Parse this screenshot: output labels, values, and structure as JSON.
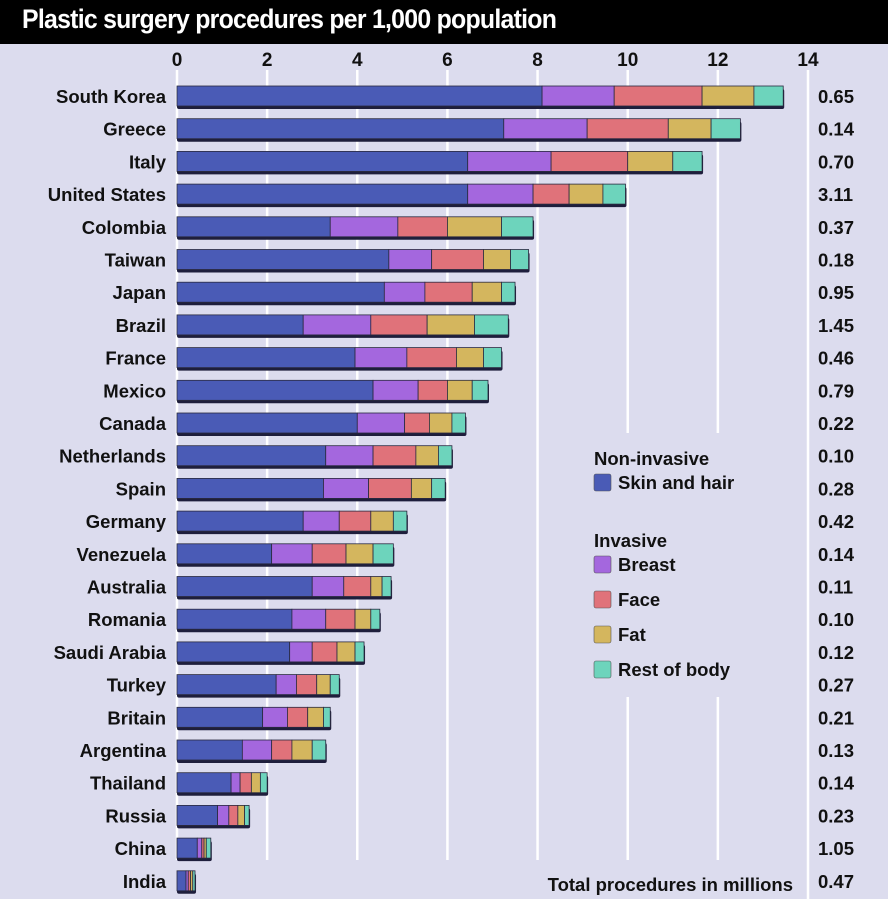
{
  "chart_data": {
    "type": "bar",
    "orientation": "horizontal",
    "stacked": true,
    "title": "Plastic surgery procedures per 1,000 population",
    "xlabel": "",
    "ylabel": "",
    "xlim": [
      0,
      14
    ],
    "xticks": [
      0,
      2,
      4,
      6,
      8,
      10,
      12,
      14
    ],
    "grid": true,
    "categories": [
      "South Korea",
      "Greece",
      "Italy",
      "United States",
      "Colombia",
      "Taiwan",
      "Japan",
      "Brazil",
      "France",
      "Mexico",
      "Canada",
      "Netherlands",
      "Spain",
      "Germany",
      "Venezuela",
      "Australia",
      "Romania",
      "Saudi Arabia",
      "Turkey",
      "Britain",
      "Argentina",
      "Thailand",
      "Russia",
      "China",
      "India"
    ],
    "series": [
      {
        "name": "Skin and hair",
        "group": "Non-invasive",
        "color": "#4a5bb6",
        "values": [
          8.1,
          7.25,
          6.45,
          6.45,
          3.4,
          4.7,
          4.6,
          2.8,
          3.95,
          4.35,
          4.0,
          3.3,
          3.25,
          2.8,
          2.1,
          3.0,
          2.55,
          2.5,
          2.2,
          1.9,
          1.45,
          1.2,
          0.9,
          0.45,
          0.2
        ]
      },
      {
        "name": "Breast",
        "group": "Invasive",
        "color": "#a467de",
        "values": [
          1.6,
          1.85,
          1.85,
          1.45,
          1.5,
          0.95,
          0.9,
          1.5,
          1.15,
          1.0,
          1.05,
          1.05,
          1.0,
          0.8,
          0.9,
          0.7,
          0.75,
          0.5,
          0.45,
          0.55,
          0.65,
          0.2,
          0.25,
          0.1,
          0.05
        ]
      },
      {
        "name": "Face",
        "group": "Invasive",
        "color": "#e0727a",
        "values": [
          1.95,
          1.8,
          1.7,
          0.8,
          1.1,
          1.15,
          1.05,
          1.25,
          1.1,
          0.65,
          0.55,
          0.95,
          0.95,
          0.7,
          0.75,
          0.6,
          0.65,
          0.55,
          0.45,
          0.45,
          0.45,
          0.25,
          0.2,
          0.05,
          0.05
        ]
      },
      {
        "name": "Fat",
        "group": "Invasive",
        "color": "#d4b65e",
        "values": [
          1.15,
          0.95,
          1.0,
          0.75,
          1.2,
          0.6,
          0.65,
          1.05,
          0.6,
          0.55,
          0.5,
          0.5,
          0.45,
          0.5,
          0.6,
          0.25,
          0.35,
          0.4,
          0.3,
          0.35,
          0.45,
          0.2,
          0.15,
          0.05,
          0.05
        ]
      },
      {
        "name": "Rest of body",
        "group": "Invasive",
        "color": "#6dd4bc",
        "values": [
          0.65,
          0.65,
          0.65,
          0.5,
          0.7,
          0.4,
          0.3,
          0.75,
          0.4,
          0.35,
          0.3,
          0.3,
          0.3,
          0.3,
          0.45,
          0.2,
          0.2,
          0.2,
          0.2,
          0.15,
          0.3,
          0.15,
          0.1,
          0.1,
          0.05
        ]
      }
    ],
    "totals_label": "Total procedures in millions",
    "totals": [
      "0.65",
      "0.14",
      "0.70",
      "3.11",
      "0.37",
      "0.18",
      "0.95",
      "1.45",
      "0.46",
      "0.79",
      "0.22",
      "0.10",
      "0.28",
      "0.42",
      "0.14",
      "0.11",
      "0.10",
      "0.12",
      "0.27",
      "0.21",
      "0.13",
      "0.14",
      "0.23",
      "1.05",
      "0.47"
    ],
    "legend": {
      "placement": "right-middle",
      "groups": [
        {
          "heading": "Non-invasive",
          "items": [
            "Skin and hair"
          ]
        },
        {
          "heading": "Invasive",
          "items": [
            "Breast",
            "Face",
            "Fat",
            "Rest of body"
          ]
        }
      ]
    }
  }
}
